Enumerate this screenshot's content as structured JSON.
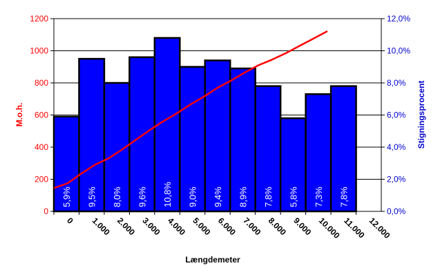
{
  "chart_data": {
    "type": "bar",
    "xlabel": "Længdemeter",
    "ylabel_left": "M.o.h.",
    "ylabel_right": "Stigningsprocent",
    "y_left": {
      "range": [
        0,
        1200
      ],
      "ticks": [
        0,
        200,
        400,
        600,
        800,
        1000,
        1200
      ],
      "tick_labels": [
        "0",
        "200",
        "400",
        "600",
        "800",
        "1000",
        "1200"
      ],
      "color": "#ff0000"
    },
    "y_right": {
      "range": [
        0,
        12
      ],
      "ticks": [
        0,
        2,
        4,
        6,
        8,
        10,
        12
      ],
      "tick_labels": [
        "0,0%",
        "2,0%",
        "4,0%",
        "6,0%",
        "8,0%",
        "10,0%",
        "12,0%"
      ],
      "color": "#0000cc"
    },
    "x_axis": {
      "range": [
        0,
        12000
      ],
      "ticks": [
        0,
        1000,
        2000,
        3000,
        4000,
        5000,
        6000,
        7000,
        8000,
        9000,
        10000,
        11000,
        12000
      ],
      "tick_labels": [
        "0",
        "1.000",
        "2.000",
        "3.000",
        "4.000",
        "5.000",
        "6.000",
        "7.000",
        "8.000",
        "9.000",
        "10.000",
        "11.000",
        "12.000"
      ]
    },
    "gridlines": true,
    "series": [
      {
        "type": "bar",
        "axis": "right",
        "color": "#0000ff",
        "values": [
          5.9,
          9.5,
          8.0,
          9.6,
          10.8,
          9.0,
          9.4,
          8.9,
          7.8,
          5.8,
          7.3,
          7.8
        ],
        "labels": [
          "5,9%",
          "9,5%",
          "8,0%",
          "9,6%",
          "10,8%",
          "9,0%",
          "9,4%",
          "8,9%",
          "7,8%",
          "5,8%",
          "7,3%",
          "7,8%"
        ]
      },
      {
        "type": "line",
        "axis": "left",
        "color": "#ff0000",
        "points": [
          [
            0,
            145
          ],
          [
            500,
            175
          ],
          [
            1000,
            235
          ],
          [
            1500,
            290
          ],
          [
            2000,
            330
          ],
          [
            2500,
            385
          ],
          [
            3000,
            445
          ],
          [
            3500,
            505
          ],
          [
            4000,
            560
          ],
          [
            4500,
            610
          ],
          [
            5000,
            665
          ],
          [
            5500,
            715
          ],
          [
            6000,
            770
          ],
          [
            6500,
            815
          ],
          [
            7000,
            865
          ],
          [
            7500,
            910
          ],
          [
            8000,
            945
          ],
          [
            8500,
            985
          ],
          [
            9000,
            1030
          ],
          [
            9500,
            1075
          ],
          [
            10000,
            1120
          ]
        ]
      }
    ]
  }
}
